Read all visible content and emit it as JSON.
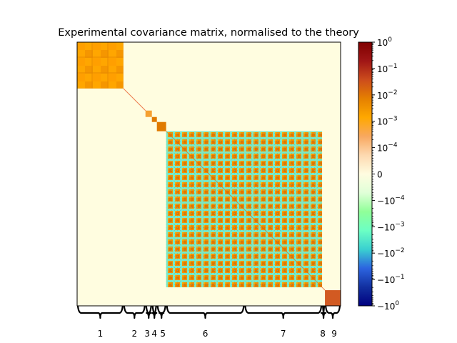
{
  "chart_data": {
    "type": "heatmap",
    "title": "Experimental covariance matrix, normalised to the theory",
    "matrix_size": 370,
    "blocks": [
      {
        "label": "1",
        "start": 0,
        "end": 65,
        "magnitude": 0.002,
        "style": "positive"
      },
      {
        "label": "2",
        "start": 65,
        "end": 96,
        "magnitude": 0.001,
        "style": "diagonal"
      },
      {
        "label": "3",
        "start": 96,
        "end": 105,
        "magnitude": 0.0005,
        "style": "positive"
      },
      {
        "label": "4",
        "start": 105,
        "end": 112,
        "magnitude": 0.003,
        "style": "positive"
      },
      {
        "label": "5",
        "start": 112,
        "end": 125,
        "magnitude": 0.003,
        "style": "positive"
      },
      {
        "label": "6",
        "start": 125,
        "end": 235,
        "magnitude": 0.002,
        "style": "mixed"
      },
      {
        "label": "7",
        "start": 235,
        "end": 344,
        "magnitude": 0.002,
        "style": "mixed"
      },
      {
        "label": "8",
        "start": 344,
        "end": 348,
        "magnitude": 0.001,
        "style": "diagonal"
      },
      {
        "label": "9",
        "start": 348,
        "end": 370,
        "magnitude": 0.02,
        "style": "positive"
      }
    ],
    "coupled_blocks": [
      "6",
      "7"
    ],
    "off_block_value": 0,
    "colorbar": {
      "scale": "symlog",
      "range": [
        -1,
        1
      ],
      "tick_labels": [
        {
          "value": 1,
          "label": "10^0"
        },
        {
          "value": 0.1,
          "label": "10^-1"
        },
        {
          "value": 0.01,
          "label": "10^-2"
        },
        {
          "value": 0.001,
          "label": "10^-3"
        },
        {
          "value": 0.0001,
          "label": "10^-4"
        },
        {
          "value": 0,
          "label": "0"
        },
        {
          "value": -0.0001,
          "label": "−10^-4"
        },
        {
          "value": -0.001,
          "label": "−10^-3"
        },
        {
          "value": -0.01,
          "label": "−10^-2"
        },
        {
          "value": -0.1,
          "label": "−10^-1"
        },
        {
          "value": -1,
          "label": "−10^0"
        }
      ]
    },
    "colormap": {
      "positive": [
        "#fffce0",
        "#fdd9b0",
        "#f8a860",
        "#ffa800",
        "#e58000",
        "#cc4c1c",
        "#a01616",
        "#7f0000"
      ],
      "negative": [
        "#fffce0",
        "#e0ffd8",
        "#90ff98",
        "#6cffc4",
        "#3ad0d0",
        "#2c64e0",
        "#1230a0",
        "#00007f"
      ]
    },
    "colors": {
      "background": "#fffde0",
      "block_pos": "#ffa200",
      "block_pos_dark": "#e07a00",
      "block_neg": "#78e8c8",
      "block9": "#d25a22",
      "diagonal": "#e85a2a"
    }
  }
}
